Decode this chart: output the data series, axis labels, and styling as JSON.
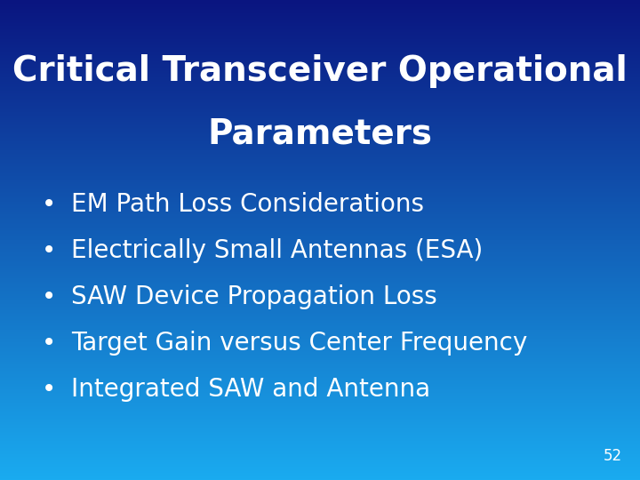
{
  "title_line1": "Critical Transceiver Operational",
  "title_line2": "Parameters",
  "bullet_items": [
    "EM Path Loss Considerations",
    "Electrically Small Antennas (ESA)",
    "SAW Device Propagation Loss",
    "Target Gain versus Center Frequency",
    "Integrated SAW and Antenna"
  ],
  "slide_number": "52",
  "title_fontsize": 28,
  "bullet_fontsize": 20,
  "slide_number_fontsize": 12,
  "title_color": "#FFFFFF",
  "bullet_color": "#FFFFFF",
  "slide_number_color": "#FFFFFF",
  "bg_top_color": "#0A1580",
  "bg_bottom_color": "#1AABF0",
  "bullet_symbol": "•"
}
